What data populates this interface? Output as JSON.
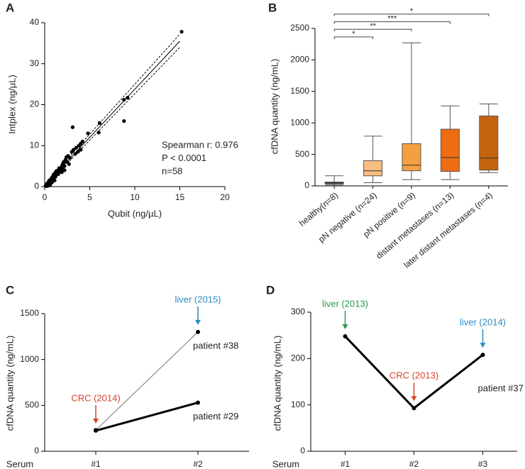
{
  "chart_data": [
    {
      "type": "scatter",
      "panel": "A",
      "xlabel": "Qubit (ng/µL)",
      "ylabel": "Intplex (ng/µL)",
      "x": [
        0.1,
        0.2,
        0.3,
        0.3,
        0.4,
        0.5,
        0.5,
        0.6,
        0.7,
        0.8,
        0.8,
        0.9,
        1,
        1,
        1.1,
        1.2,
        1.2,
        1.3,
        1.4,
        1.5,
        1.5,
        1.6,
        1.7,
        1.8,
        1.9,
        2,
        2,
        2.1,
        2.2,
        2.3,
        2.4,
        2.5,
        2.6,
        2.8,
        3,
        3.1,
        3.2,
        3.4,
        3.5,
        3.8,
        4,
        4.2,
        4.8,
        4,
        2.7,
        1.9,
        0.6,
        0.2,
        6,
        6.1,
        8.8,
        8.8,
        9.2,
        15.2,
        1.1,
        0.4,
        2.2,
        3.7
      ],
      "y": [
        0.2,
        0.5,
        0.3,
        0.8,
        1,
        0.6,
        1.5,
        1.2,
        1.8,
        1,
        2.2,
        2.5,
        1.8,
        3,
        2.8,
        3.5,
        2.4,
        3.8,
        3.2,
        4,
        3,
        4.5,
        3.6,
        4.2,
        5,
        4.2,
        5.5,
        6,
        5,
        6.5,
        7.2,
        6,
        7.5,
        7,
        8.5,
        14.5,
        9,
        8,
        9.5,
        10,
        10.5,
        11,
        13,
        9,
        5.5,
        3.5,
        0.4,
        0.1,
        13.2,
        15.5,
        16,
        21.2,
        21.7,
        37.8,
        1.5,
        0.2,
        4,
        8.5
      ],
      "color": "#000000",
      "xlim": [
        0,
        20
      ],
      "xticks": [
        0,
        5,
        10,
        15,
        20
      ],
      "ylim": [
        0,
        40
      ],
      "yticks": [
        0,
        10,
        20,
        30,
        40
      ],
      "annotations": [
        "Spearman r: 0.976",
        "P < 0.0001",
        "n=58"
      ],
      "fit_lines": [
        {
          "style": "solid",
          "x": [
            0,
            15
          ],
          "y": [
            0.3,
            35.5
          ]
        },
        {
          "style": "dashed",
          "x": [
            0,
            15
          ],
          "y": [
            0.6,
            37.2
          ]
        },
        {
          "style": "dashed",
          "x": [
            0,
            15
          ],
          "y": [
            0,
            34
          ]
        }
      ]
    },
    {
      "type": "box",
      "panel": "B",
      "ylabel": "cfDNA quantity (ng/mL)",
      "categories": [
        "healthy(n=8)",
        "pN negative (n=24)",
        "pN positive (n=9)",
        "distant metastases (n=13)",
        "later distant metastases (n=4)"
      ],
      "min": [
        15,
        50,
        100,
        100,
        210
      ],
      "q1": [
        35,
        160,
        240,
        230,
        250
      ],
      "median": [
        45,
        240,
        330,
        450,
        440
      ],
      "q3": [
        60,
        400,
        670,
        900,
        1110
      ],
      "max": [
        160,
        790,
        2270,
        1270,
        1300
      ],
      "colors": [
        "#ffffff",
        "#f8bd80",
        "#f5a040",
        "#ee6c12",
        "#c4640f"
      ],
      "ylim": [
        0,
        2500
      ],
      "yticks": [
        0,
        500,
        1000,
        1500,
        2000,
        2500
      ],
      "comparisons": [
        {
          "from": 0,
          "to": 1,
          "label": "*"
        },
        {
          "from": 0,
          "to": 2,
          "label": "**"
        },
        {
          "from": 0,
          "to": 3,
          "label": "***"
        },
        {
          "from": 0,
          "to": 4,
          "label": "*"
        }
      ]
    },
    {
      "type": "line",
      "panel": "C",
      "xlabel": "Serum",
      "ylabel": "cfDNA quantity (ng/mL)",
      "categories": [
        "#1",
        "#2"
      ],
      "ylim": [
        0,
        1500
      ],
      "yticks": [
        0,
        500,
        1000,
        1500
      ],
      "series": [
        {
          "name": "patient #38",
          "color": "#777777",
          "line_width": 1,
          "values": [
            230,
            1300
          ],
          "annotations": [
            null,
            "liver (2015)"
          ],
          "annotation_colors": [
            null,
            "#2b8cc4"
          ]
        },
        {
          "name": "patient #29",
          "color": "#000000",
          "line_width": 3,
          "values": [
            225,
            530
          ],
          "annotations": [
            "CRC (2014)",
            null
          ],
          "annotation_colors": [
            "#d9432a",
            null
          ]
        }
      ]
    },
    {
      "type": "line",
      "panel": "D",
      "xlabel": "Serum",
      "ylabel": "cfDNA quantity (ng/mL)",
      "categories": [
        "#1",
        "#2",
        "#3"
      ],
      "ylim": [
        0,
        300
      ],
      "yticks": [
        0,
        100,
        200,
        300
      ],
      "series": [
        {
          "name": "patient #37",
          "color": "#000000",
          "line_width": 3,
          "values": [
            248,
            93,
            208
          ],
          "annotations": [
            "liver (2013)",
            "CRC (2013)",
            "liver (2014)"
          ],
          "annotation_colors": [
            "#2e9b4e",
            "#d9432a",
            "#2b8cc4"
          ]
        }
      ]
    }
  ]
}
